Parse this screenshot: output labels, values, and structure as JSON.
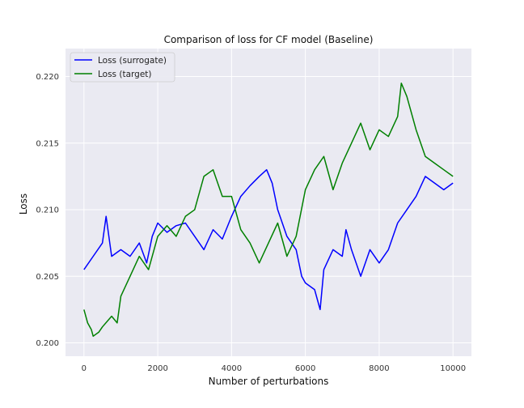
{
  "chart_data": {
    "type": "line",
    "title": "Comparison of loss for CF model (Baseline)",
    "xlabel": "Number of perturbations",
    "ylabel": "Loss",
    "xlim": [
      -500,
      10500
    ],
    "ylim": [
      0.199,
      0.2221
    ],
    "xticks": [
      0,
      2000,
      4000,
      6000,
      8000,
      10000
    ],
    "yticks": [
      0.2,
      0.205,
      0.21,
      0.215,
      0.22
    ],
    "ytick_labels": [
      "0.200",
      "0.205",
      "0.210",
      "0.215",
      "0.220"
    ],
    "grid": true,
    "background": "#eaeaf2",
    "legend_position": "top-left",
    "series": [
      {
        "name": "Loss (surrogate)",
        "color": "#0000ff",
        "x": [
          0,
          250,
          500,
          600,
          750,
          1000,
          1250,
          1500,
          1700,
          1850,
          2000,
          2250,
          2500,
          2750,
          3000,
          3250,
          3500,
          3750,
          4000,
          4250,
          4500,
          4750,
          4950,
          5100,
          5250,
          5500,
          5750,
          5900,
          6000,
          6250,
          6400,
          6500,
          6750,
          7000,
          7100,
          7250,
          7500,
          7750,
          8000,
          8250,
          8500,
          8750,
          9000,
          9250,
          9500,
          9750,
          10000
        ],
        "values": [
          0.2055,
          0.2065,
          0.2075,
          0.2095,
          0.2065,
          0.207,
          0.2065,
          0.2075,
          0.206,
          0.208,
          0.209,
          0.2083,
          0.2088,
          0.209,
          0.208,
          0.207,
          0.2085,
          0.2078,
          0.2095,
          0.211,
          0.2118,
          0.2125,
          0.213,
          0.212,
          0.21,
          0.208,
          0.207,
          0.205,
          0.2045,
          0.204,
          0.2025,
          0.2055,
          0.207,
          0.2065,
          0.2085,
          0.207,
          0.205,
          0.207,
          0.206,
          0.207,
          0.209,
          0.21,
          0.211,
          0.2125,
          0.212,
          0.2115,
          0.212
        ]
      },
      {
        "name": "Loss (target)",
        "color": "#008000",
        "x": [
          0,
          100,
          200,
          250,
          400,
          500,
          750,
          900,
          1000,
          1250,
          1500,
          1750,
          2000,
          2250,
          2500,
          2750,
          3000,
          3250,
          3500,
          3750,
          4000,
          4250,
          4500,
          4750,
          5000,
          5250,
          5500,
          5750,
          6000,
          6250,
          6500,
          6750,
          7000,
          7250,
          7500,
          7750,
          8000,
          8250,
          8500,
          8600,
          8750,
          9000,
          9250,
          9500,
          9750,
          10000
        ],
        "values": [
          0.2025,
          0.2015,
          0.201,
          0.2005,
          0.2008,
          0.2012,
          0.202,
          0.2015,
          0.2035,
          0.205,
          0.2065,
          0.2055,
          0.208,
          0.2088,
          0.208,
          0.2095,
          0.21,
          0.2125,
          0.213,
          0.211,
          0.211,
          0.2085,
          0.2075,
          0.206,
          0.2075,
          0.209,
          0.2065,
          0.208,
          0.2115,
          0.213,
          0.214,
          0.2115,
          0.2135,
          0.215,
          0.2165,
          0.2145,
          0.216,
          0.2155,
          0.217,
          0.2195,
          0.2185,
          0.216,
          0.214,
          0.2135,
          0.213,
          0.2125
        ]
      }
    ]
  }
}
